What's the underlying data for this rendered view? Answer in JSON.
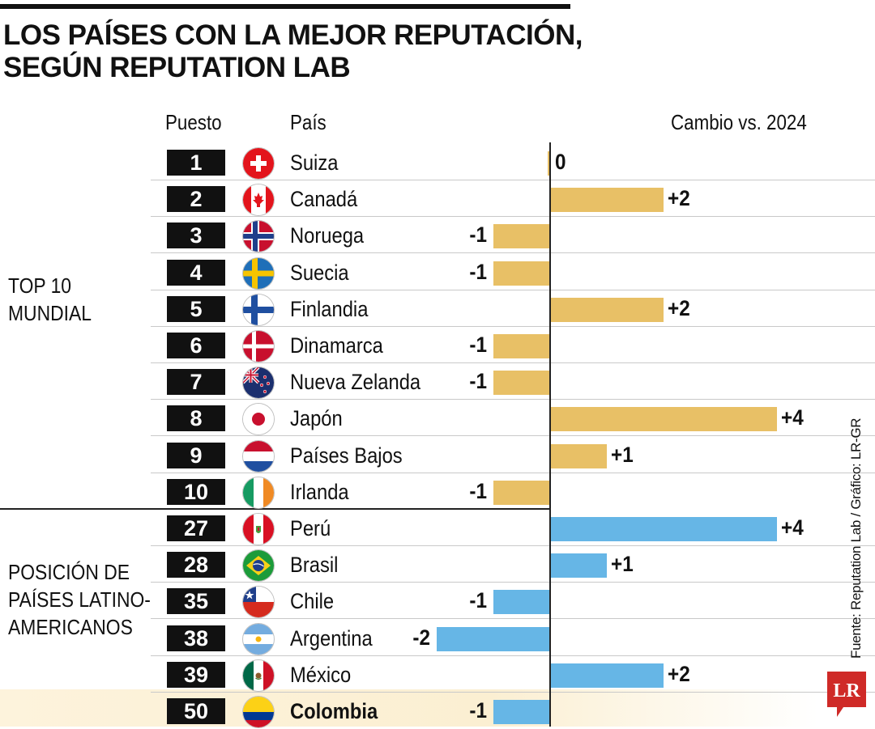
{
  "header": {
    "title_line1": "LOS PAÍSES CON LA MEJOR REPUTACIÓN,",
    "title_line2": "SEGÚN REPUTATION LAB"
  },
  "columns": {
    "rank": "Puesto",
    "country": "País",
    "change": "Cambio vs. 2024"
  },
  "groups": {
    "top_line1": "TOP 10",
    "top_line2": "MUNDIAL",
    "latam_line1": "POSICIÓN DE",
    "latam_line2": "PAÍSES LATINO-",
    "latam_line3": "AMERICANOS"
  },
  "source": "Fuente: Reputation Lab / Gráfico: LR-GR",
  "logo_text": "LR",
  "colors": {
    "top10_bar": "#e8c066",
    "latam_bar": "#66b6e6",
    "highlight_row": "#fbefd2",
    "logo_red": "#cf2a27",
    "rank_box": "#111111"
  },
  "chart_data": {
    "type": "bar",
    "orientation": "horizontal",
    "title": "LOS PAÍSES CON LA MEJOR REPUTACIÓN, SEGÚN REPUTATION LAB",
    "xlabel": "Cambio vs. 2024",
    "xlim": [
      -2,
      4
    ],
    "grid": false,
    "highlighted_category": "Colombia",
    "categories": [
      "Suiza",
      "Canadá",
      "Noruega",
      "Suecia",
      "Finlandia",
      "Dinamarca",
      "Nueva Zelanda",
      "Japón",
      "Países Bajos",
      "Irlanda",
      "Perú",
      "Brasil",
      "Chile",
      "Argentina",
      "México",
      "Colombia"
    ],
    "rows": [
      {
        "rank": "1",
        "country": "Suiza",
        "flag": "switzerland-flag-icon",
        "change": 0,
        "label": "0",
        "group": "top"
      },
      {
        "rank": "2",
        "country": "Canadá",
        "flag": "canada-flag-icon",
        "change": 2,
        "label": "+2",
        "group": "top"
      },
      {
        "rank": "3",
        "country": "Noruega",
        "flag": "norway-flag-icon",
        "change": -1,
        "label": "-1",
        "group": "top"
      },
      {
        "rank": "4",
        "country": "Suecia",
        "flag": "sweden-flag-icon",
        "change": -1,
        "label": "-1",
        "group": "top"
      },
      {
        "rank": "5",
        "country": "Finlandia",
        "flag": "finland-flag-icon",
        "change": 2,
        "label": "+2",
        "group": "top"
      },
      {
        "rank": "6",
        "country": "Dinamarca",
        "flag": "denmark-flag-icon",
        "change": -1,
        "label": "-1",
        "group": "top"
      },
      {
        "rank": "7",
        "country": "Nueva Zelanda",
        "flag": "new-zealand-flag-icon",
        "change": -1,
        "label": "-1",
        "group": "top"
      },
      {
        "rank": "8",
        "country": "Japón",
        "flag": "japan-flag-icon",
        "change": 4,
        "label": "+4",
        "group": "top"
      },
      {
        "rank": "9",
        "country": "Países Bajos",
        "flag": "netherlands-flag-icon",
        "change": 1,
        "label": "+1",
        "group": "top"
      },
      {
        "rank": "10",
        "country": "Irlanda",
        "flag": "ireland-flag-icon",
        "change": -1,
        "label": "-1",
        "group": "top"
      },
      {
        "rank": "27",
        "country": "Perú",
        "flag": "peru-flag-icon",
        "change": 4,
        "label": "+4",
        "group": "latam"
      },
      {
        "rank": "28",
        "country": "Brasil",
        "flag": "brazil-flag-icon",
        "change": 1,
        "label": "+1",
        "group": "latam"
      },
      {
        "rank": "35",
        "country": "Chile",
        "flag": "chile-flag-icon",
        "change": -1,
        "label": "-1",
        "group": "latam"
      },
      {
        "rank": "38",
        "country": "Argentina",
        "flag": "argentina-flag-icon",
        "change": -2,
        "label": "-2",
        "group": "latam"
      },
      {
        "rank": "39",
        "country": "México",
        "flag": "mexico-flag-icon",
        "change": 2,
        "label": "+2",
        "group": "latam"
      },
      {
        "rank": "50",
        "country": "Colombia",
        "flag": "colombia-flag-icon",
        "change": -1,
        "label": "-1",
        "group": "latam"
      }
    ]
  }
}
